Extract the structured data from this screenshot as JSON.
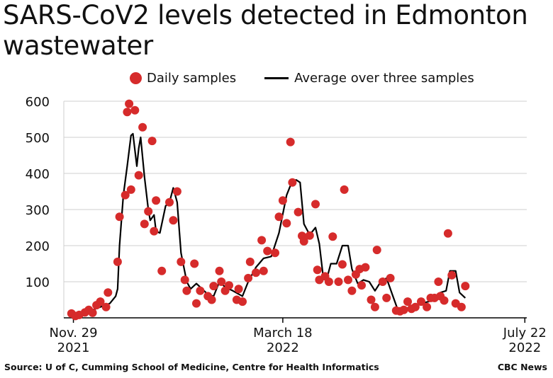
{
  "title": "SARS-CoV2 levels detected in Edmonton wastewater",
  "legend": {
    "dots_label": "Daily samples",
    "line_label": "Average over three samples",
    "dot_color": "#d62b2b",
    "line_color": "#000000"
  },
  "source": "Source: U of C, Cumming School of Medicine, Centre for Health Informatics",
  "credit": "CBC News",
  "chart_data": {
    "type": "scatter",
    "title": "SARS-CoV2 levels detected in Edmonton wastewater",
    "xlabel": "",
    "ylabel": "",
    "x_start": "2021-11-29",
    "x_end": "2022-07-22",
    "xlim": [
      "2021-11-24",
      "2022-07-23"
    ],
    "ylim": [
      0,
      600
    ],
    "yticks": [
      100,
      200,
      300,
      400,
      500,
      600
    ],
    "yticklabels": [
      "100",
      "200",
      "300",
      "400",
      "500",
      "600"
    ],
    "xticks": [
      {
        "date": "2021-11-29",
        "line1": "Nov. 29",
        "line2": "2021"
      },
      {
        "date": "2022-03-18",
        "line1": "March 18",
        "line2": "2022"
      },
      {
        "date": "2022-07-22",
        "line1": "July 22",
        "line2": "2022"
      }
    ],
    "grid": "horizontal",
    "legend_position": "top",
    "series": [
      {
        "name": "Daily samples",
        "kind": "scatter",
        "points": [
          [
            "2021-11-28",
            12
          ],
          [
            "2021-11-30",
            5
          ],
          [
            "2021-12-02",
            8
          ],
          [
            "2021-12-05",
            15
          ],
          [
            "2021-12-07",
            22
          ],
          [
            "2021-12-09",
            14
          ],
          [
            "2021-12-11",
            35
          ],
          [
            "2021-12-13",
            45
          ],
          [
            "2021-12-16",
            30
          ],
          [
            "2021-12-17",
            70
          ],
          [
            "2021-12-22",
            155
          ],
          [
            "2021-12-23",
            280
          ],
          [
            "2021-12-26",
            340
          ],
          [
            "2021-12-27",
            570
          ],
          [
            "2021-12-28",
            593
          ],
          [
            "2021-12-29",
            355
          ],
          [
            "2021-12-31",
            575
          ],
          [
            "2022-01-02",
            395
          ],
          [
            "2022-01-04",
            528
          ],
          [
            "2022-01-05",
            260
          ],
          [
            "2022-01-07",
            295
          ],
          [
            "2022-01-09",
            490
          ],
          [
            "2022-01-10",
            240
          ],
          [
            "2022-01-11",
            325
          ],
          [
            "2022-01-14",
            130
          ],
          [
            "2022-01-18",
            320
          ],
          [
            "2022-01-20",
            270
          ],
          [
            "2022-01-22",
            350
          ],
          [
            "2022-01-24",
            155
          ],
          [
            "2022-01-26",
            105
          ],
          [
            "2022-01-27",
            75
          ],
          [
            "2022-01-31",
            150
          ],
          [
            "2022-02-01",
            40
          ],
          [
            "2022-02-03",
            75
          ],
          [
            "2022-02-07",
            60
          ],
          [
            "2022-02-09",
            50
          ],
          [
            "2022-02-10",
            88
          ],
          [
            "2022-02-13",
            130
          ],
          [
            "2022-02-14",
            100
          ],
          [
            "2022-02-16",
            75
          ],
          [
            "2022-02-18",
            90
          ],
          [
            "2022-02-22",
            50
          ],
          [
            "2022-02-23",
            80
          ],
          [
            "2022-02-25",
            45
          ],
          [
            "2022-02-28",
            110
          ],
          [
            "2022-03-01",
            155
          ],
          [
            "2022-03-04",
            125
          ],
          [
            "2022-03-07",
            215
          ],
          [
            "2022-03-08",
            130
          ],
          [
            "2022-03-10",
            185
          ],
          [
            "2022-03-14",
            180
          ],
          [
            "2022-03-16",
            280
          ],
          [
            "2022-03-18",
            325
          ],
          [
            "2022-03-20",
            262
          ],
          [
            "2022-03-22",
            487
          ],
          [
            "2022-03-23",
            375
          ],
          [
            "2022-03-26",
            293
          ],
          [
            "2022-03-28",
            227
          ],
          [
            "2022-03-29",
            212
          ],
          [
            "2022-04-01",
            228
          ],
          [
            "2022-04-04",
            315
          ],
          [
            "2022-04-05",
            133
          ],
          [
            "2022-04-06",
            105
          ],
          [
            "2022-04-09",
            115
          ],
          [
            "2022-04-11",
            100
          ],
          [
            "2022-04-13",
            225
          ],
          [
            "2022-04-16",
            100
          ],
          [
            "2022-04-18",
            148
          ],
          [
            "2022-04-19",
            355
          ],
          [
            "2022-04-21",
            105
          ],
          [
            "2022-04-23",
            75
          ],
          [
            "2022-04-25",
            120
          ],
          [
            "2022-04-27",
            135
          ],
          [
            "2022-04-28",
            90
          ],
          [
            "2022-04-30",
            140
          ],
          [
            "2022-05-03",
            50
          ],
          [
            "2022-05-05",
            30
          ],
          [
            "2022-05-06",
            188
          ],
          [
            "2022-05-09",
            100
          ],
          [
            "2022-05-11",
            55
          ],
          [
            "2022-05-13",
            110
          ],
          [
            "2022-05-16",
            20
          ],
          [
            "2022-05-18",
            18
          ],
          [
            "2022-05-20",
            22
          ],
          [
            "2022-05-22",
            45
          ],
          [
            "2022-05-24",
            25
          ],
          [
            "2022-05-26",
            30
          ],
          [
            "2022-05-29",
            45
          ],
          [
            "2022-06-01",
            30
          ],
          [
            "2022-06-03",
            55
          ],
          [
            "2022-06-05",
            55
          ],
          [
            "2022-06-07",
            100
          ],
          [
            "2022-06-08",
            60
          ],
          [
            "2022-06-10",
            48
          ],
          [
            "2022-06-12",
            234
          ],
          [
            "2022-06-14",
            118
          ],
          [
            "2022-06-16",
            40
          ],
          [
            "2022-06-19",
            30
          ],
          [
            "2022-06-21",
            88
          ]
        ]
      },
      {
        "name": "Average over three samples",
        "kind": "line",
        "points": [
          [
            "2021-11-28",
            5
          ],
          [
            "2021-12-03",
            10
          ],
          [
            "2021-12-08",
            20
          ],
          [
            "2021-12-13",
            30
          ],
          [
            "2021-12-18",
            40
          ],
          [
            "2021-12-21",
            60
          ],
          [
            "2021-12-22",
            80
          ],
          [
            "2021-12-23",
            200
          ],
          [
            "2021-12-25",
            340
          ],
          [
            "2021-12-27",
            420
          ],
          [
            "2021-12-29",
            505
          ],
          [
            "2021-12-30",
            510
          ],
          [
            "2022-01-01",
            420
          ],
          [
            "2022-01-02",
            470
          ],
          [
            "2022-01-03",
            500
          ],
          [
            "2022-01-05",
            390
          ],
          [
            "2022-01-07",
            300
          ],
          [
            "2022-01-08",
            270
          ],
          [
            "2022-01-10",
            285
          ],
          [
            "2022-01-11",
            240
          ],
          [
            "2022-01-13",
            235
          ],
          [
            "2022-01-16",
            310
          ],
          [
            "2022-01-18",
            320
          ],
          [
            "2022-01-20",
            360
          ],
          [
            "2022-01-22",
            320
          ],
          [
            "2022-01-24",
            180
          ],
          [
            "2022-01-27",
            100
          ],
          [
            "2022-01-29",
            80
          ],
          [
            "2022-02-01",
            95
          ],
          [
            "2022-02-04",
            80
          ],
          [
            "2022-02-07",
            65
          ],
          [
            "2022-02-10",
            60
          ],
          [
            "2022-02-13",
            100
          ],
          [
            "2022-02-16",
            85
          ],
          [
            "2022-02-20",
            75
          ],
          [
            "2022-02-25",
            60
          ],
          [
            "2022-02-28",
            100
          ],
          [
            "2022-03-04",
            140
          ],
          [
            "2022-03-08",
            165
          ],
          [
            "2022-03-12",
            170
          ],
          [
            "2022-03-16",
            235
          ],
          [
            "2022-03-20",
            340
          ],
          [
            "2022-03-23",
            380
          ],
          [
            "2022-03-25",
            382
          ],
          [
            "2022-03-27",
            375
          ],
          [
            "2022-03-29",
            260
          ],
          [
            "2022-04-01",
            230
          ],
          [
            "2022-04-04",
            250
          ],
          [
            "2022-04-06",
            205
          ],
          [
            "2022-04-08",
            115
          ],
          [
            "2022-04-10",
            110
          ],
          [
            "2022-04-12",
            150
          ],
          [
            "2022-04-15",
            150
          ],
          [
            "2022-04-18",
            200
          ],
          [
            "2022-04-21",
            200
          ],
          [
            "2022-04-23",
            135
          ],
          [
            "2022-04-26",
            95
          ],
          [
            "2022-04-29",
            105
          ],
          [
            "2022-05-02",
            100
          ],
          [
            "2022-05-05",
            75
          ],
          [
            "2022-05-08",
            100
          ],
          [
            "2022-05-11",
            110
          ],
          [
            "2022-05-14",
            65
          ],
          [
            "2022-05-17",
            20
          ],
          [
            "2022-05-21",
            25
          ],
          [
            "2022-05-25",
            35
          ],
          [
            "2022-05-29",
            40
          ],
          [
            "2022-06-02",
            45
          ],
          [
            "2022-06-05",
            55
          ],
          [
            "2022-06-08",
            70
          ],
          [
            "2022-06-11",
            75
          ],
          [
            "2022-06-13",
            130
          ],
          [
            "2022-06-16",
            130
          ],
          [
            "2022-06-18",
            70
          ],
          [
            "2022-06-21",
            55
          ]
        ]
      }
    ]
  }
}
